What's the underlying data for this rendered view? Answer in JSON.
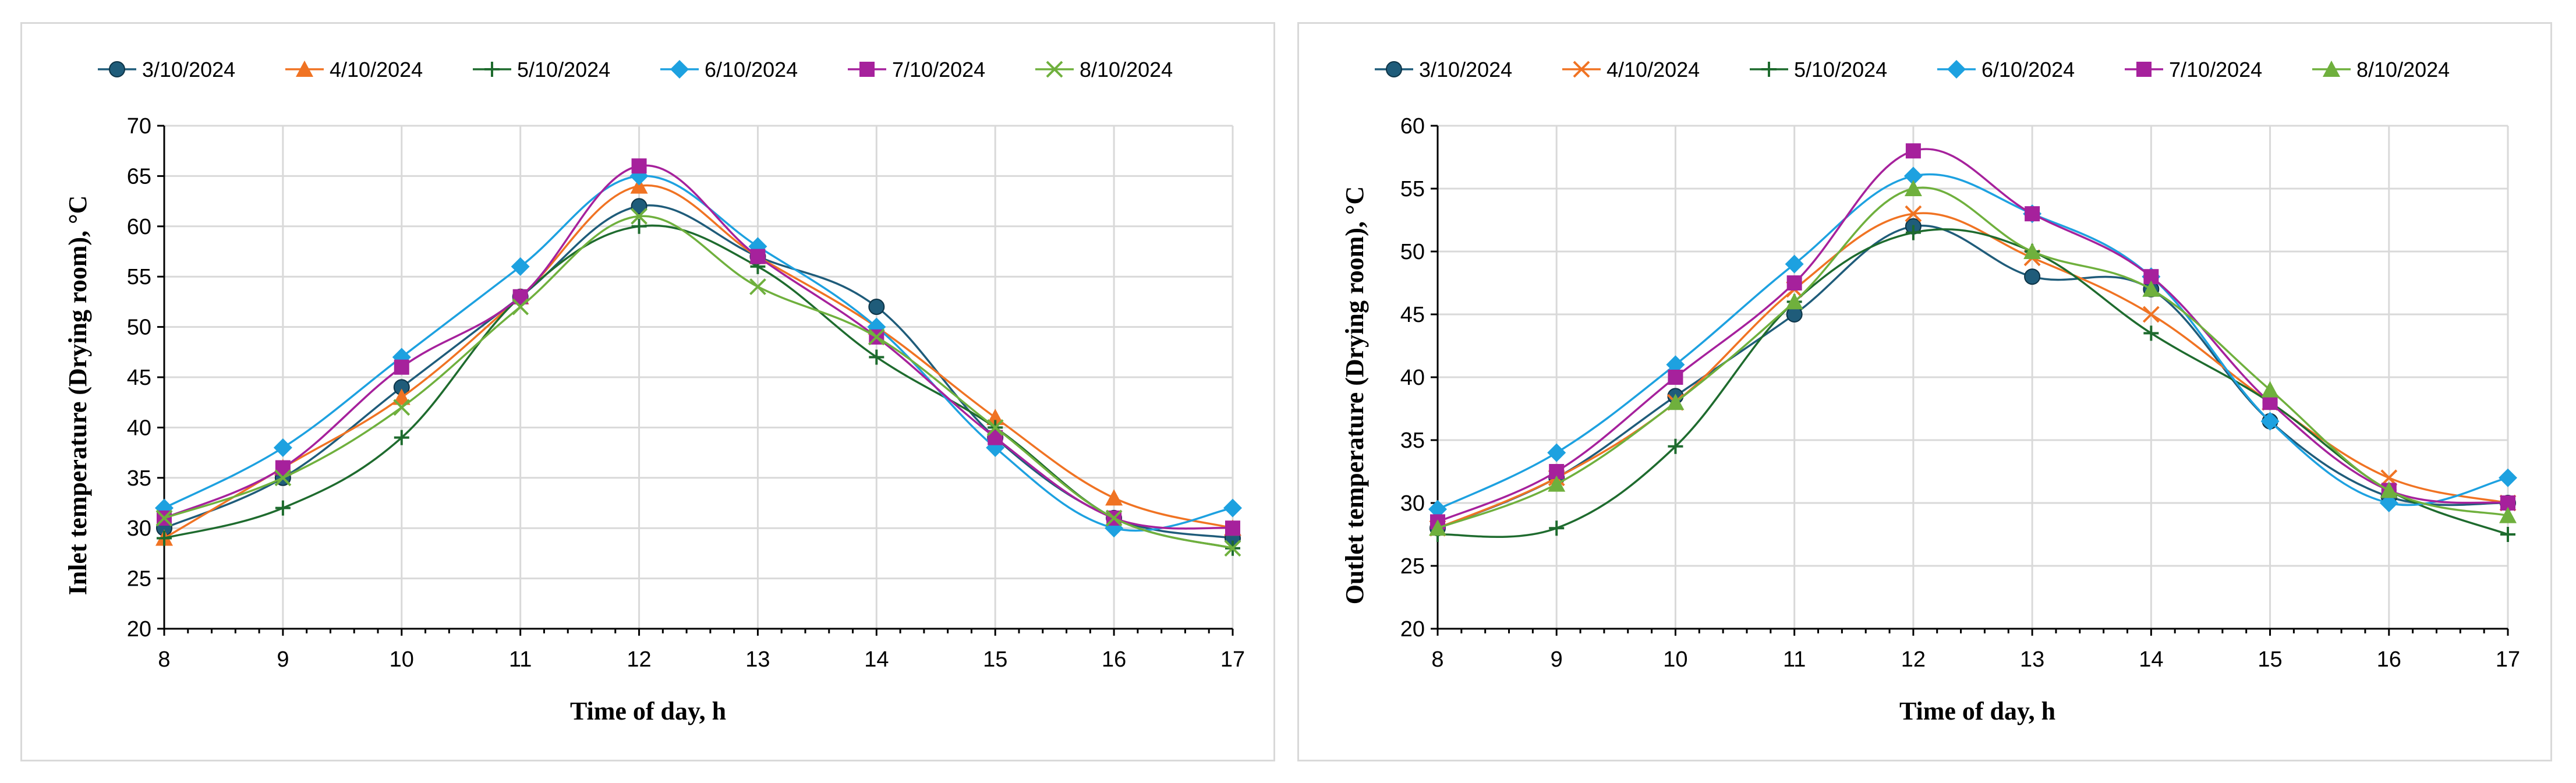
{
  "chart_data": [
    {
      "type": "line",
      "xlabel": "Time of day, h",
      "ylabel": "Inlet temperature (Drying room), °C",
      "x": [
        8,
        9,
        10,
        11,
        12,
        13,
        14,
        15,
        16,
        17
      ],
      "xlim": [
        8,
        17
      ],
      "ylim": [
        20,
        70
      ],
      "ystep": 5,
      "grid": true,
      "legend": "top",
      "series": [
        {
          "name": "3/10/2024",
          "color": "#1f5c7a",
          "marker": "circle",
          "values": [
            30,
            35,
            44,
            53,
            62,
            57,
            52,
            39,
            31,
            29
          ]
        },
        {
          "name": "4/10/2024",
          "color": "#f07323",
          "marker": "triangle",
          "values": [
            29,
            36,
            43,
            53,
            64,
            57,
            50,
            41,
            33,
            30
          ]
        },
        {
          "name": "5/10/2024",
          "color": "#1e6b2e",
          "marker": "plus",
          "values": [
            29,
            32,
            39,
            53,
            60,
            56,
            47,
            40,
            31,
            28
          ]
        },
        {
          "name": "6/10/2024",
          "color": "#1da1e0",
          "marker": "diamond",
          "values": [
            32,
            38,
            47,
            56,
            65,
            58,
            50,
            38,
            30,
            32
          ]
        },
        {
          "name": "7/10/2024",
          "color": "#a6219c",
          "marker": "square",
          "values": [
            31,
            36,
            46,
            53,
            66,
            57,
            49,
            39,
            31,
            30
          ]
        },
        {
          "name": "8/10/2024",
          "color": "#6fb03d",
          "marker": "x",
          "values": [
            31,
            35,
            42,
            52,
            61,
            54,
            49,
            40,
            31,
            28
          ]
        }
      ]
    },
    {
      "type": "line",
      "xlabel": "Time of day, h",
      "ylabel": "Outlet temperature (Drying room), °C",
      "x": [
        8,
        9,
        10,
        11,
        12,
        13,
        14,
        15,
        16,
        17
      ],
      "xlim": [
        8,
        17
      ],
      "ylim": [
        20,
        60
      ],
      "ystep": 5,
      "grid": true,
      "legend": "top",
      "series": [
        {
          "name": "3/10/2024",
          "color": "#1f5c7a",
          "marker": "circle",
          "values": [
            28,
            32,
            38.5,
            45,
            52,
            48,
            47,
            36.5,
            30.5,
            30
          ]
        },
        {
          "name": "4/10/2024",
          "color": "#f07323",
          "marker": "x",
          "values": [
            28,
            32,
            38,
            47,
            53,
            49.5,
            45,
            38,
            32,
            30
          ]
        },
        {
          "name": "5/10/2024",
          "color": "#1e6b2e",
          "marker": "plus",
          "values": [
            27.5,
            28,
            34.5,
            46,
            51.5,
            50,
            43.5,
            38,
            31,
            27.5
          ]
        },
        {
          "name": "6/10/2024",
          "color": "#1da1e0",
          "marker": "diamond",
          "values": [
            29.5,
            34,
            41,
            49,
            56,
            53,
            48,
            36.5,
            30,
            32
          ]
        },
        {
          "name": "7/10/2024",
          "color": "#a6219c",
          "marker": "square",
          "values": [
            28.5,
            32.5,
            40,
            47.5,
            58,
            53,
            48,
            38,
            31,
            30
          ]
        },
        {
          "name": "8/10/2024",
          "color": "#6fb03d",
          "marker": "triangle",
          "values": [
            28,
            31.5,
            38,
            46,
            55,
            50,
            47,
            39,
            31,
            29
          ]
        }
      ]
    }
  ]
}
